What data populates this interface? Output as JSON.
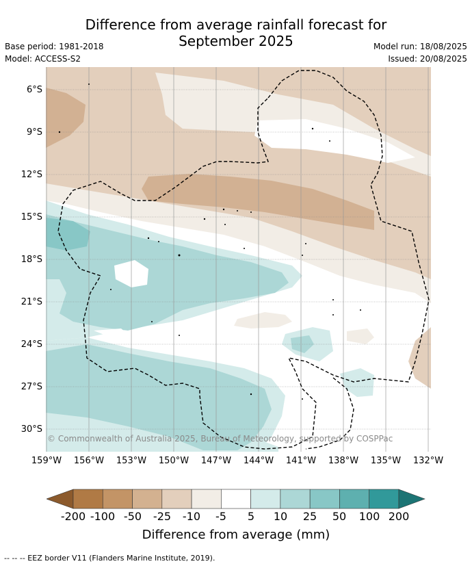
{
  "header": {
    "title_line1": "Difference from average rainfall forecast for",
    "title_line2": "September 2025",
    "base_period": "Base period: 1981-2018",
    "model": "Model: ACCESS-S2",
    "model_run": "Model run: 18/08/2025",
    "issued": "Issued: 20/08/2025"
  },
  "map": {
    "lat_labels": [
      "6°S",
      "9°S",
      "12°S",
      "15°S",
      "18°S",
      "21°S",
      "24°S",
      "27°S",
      "30°S"
    ],
    "lon_labels": [
      "159°W",
      "156°W",
      "153°W",
      "150°W",
      "147°W",
      "144°W",
      "141°W",
      "138°W",
      "135°W",
      "132°W"
    ],
    "copyright": "© Commonwealth of Australia 2025, Bureau of Meteorology, supported by COSPPac",
    "colors": {
      "brown_25_10": "#e3cfbc",
      "brown_50_25": "#d2b193",
      "brown_10_5": "#f2ede6",
      "teal_5_10": "#d4ebea",
      "teal_10_25": "#acd7d6",
      "teal_25_50": "#88c7c6",
      "eez_border": "#000000"
    }
  },
  "colorbar": {
    "labels": [
      "-200",
      "-100",
      "-50",
      "-25",
      "-10",
      "-5",
      "5",
      "10",
      "25",
      "50",
      "100",
      "200"
    ],
    "colors": [
      "#b07a45",
      "#c39466",
      "#d3b190",
      "#e3cfbc",
      "#f2ede6",
      "#ffffff",
      "#d4ebea",
      "#acd7d6",
      "#88c7c6",
      "#5eb0af",
      "#31999a"
    ],
    "extend_low_color": "#8c5a2c",
    "extend_high_color": "#1c7474",
    "title": "Difference from average (mm)"
  },
  "footnote": "-- -- -- EEZ border V11 (Flanders Marine Institute, 2019)."
}
